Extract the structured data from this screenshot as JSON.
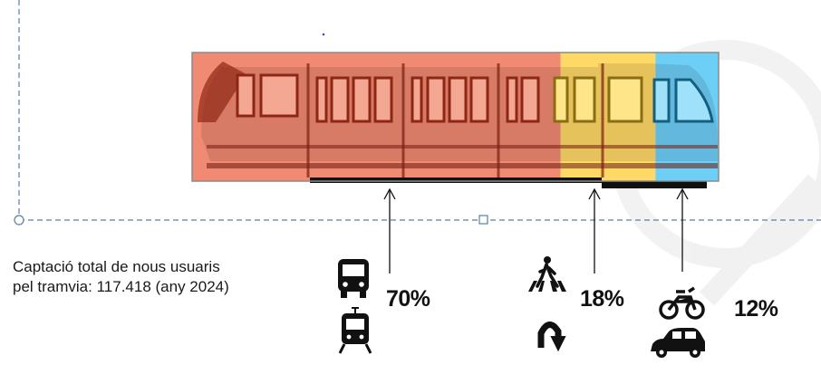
{
  "caption": {
    "line1": "Captació total de nous usuaris",
    "line2": "pel tramvia: 117.418 (any 2024)"
  },
  "chart_data": {
    "type": "bar",
    "orientation": "horizontal-stacked",
    "title": "",
    "total_value": "117.418",
    "year": "2024",
    "segments": [
      {
        "label": "70%",
        "value": 70,
        "color": "#f08a72",
        "icons": [
          "bus-icon",
          "tram-icon"
        ]
      },
      {
        "label": "18%",
        "value": 18,
        "color": "#ffd966",
        "icons": [
          "pedestrian-crossing-icon",
          "u-turn-icon"
        ]
      },
      {
        "label": "12%",
        "value": 12,
        "color": "#6ecff6",
        "icons": [
          "motorcycle-icon",
          "car-icon"
        ]
      }
    ]
  }
}
